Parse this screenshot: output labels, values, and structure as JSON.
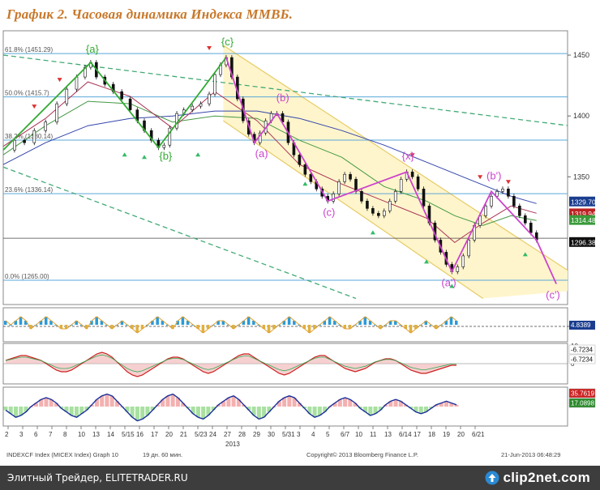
{
  "title": "График 2.   Часовая динамика Индекса ММВБ.",
  "colors": {
    "title": "#c8782a",
    "price": "#111111",
    "wave": "#cc44cc",
    "wave_abc": "#33aa33",
    "fib": "#5aa8d8",
    "channel_fill": "#fff5cc",
    "channel_line": "#e6cc66",
    "trend_dash": "#44aa77",
    "ma_long": "#3344aa",
    "ma_mid": "#449944",
    "ma_short": "#aa3355",
    "arrow_up": "#33bb66",
    "arrow_down": "#dd3333",
    "tag_blue": "#1a3d8f",
    "tag_red": "#bb2222",
    "tag_green": "#3a9a3a",
    "tag_black": "#111111"
  },
  "chart_data": {
    "type": "line",
    "ylim": [
      1245,
      1470
    ],
    "y_ticks": [
      "1450",
      "1400",
      "1350"
    ],
    "fib_levels": [
      {
        "label": "61.8% (1451.29)",
        "value": 1451.29
      },
      {
        "label": "50.0% (1415.7)",
        "value": 1415.7
      },
      {
        "label": "38.2% (1380.14)",
        "value": 1380.14
      },
      {
        "label": "23.6% (1336.14)",
        "value": 1336.14
      },
      {
        "label": "0.0% (1265.00)",
        "value": 1265.0
      }
    ],
    "extra_hlines": [
      1299.5
    ],
    "price_tags": [
      {
        "text": "1329.70",
        "value": 1329.7,
        "color": "tag_blue"
      },
      {
        "text": "1319.94",
        "value": 1319.94,
        "color": "tag_red"
      },
      {
        "text": "1314.48",
        "value": 1314.48,
        "color": "tag_green"
      },
      {
        "text": "1296.38",
        "value": 1296.38,
        "color": "tag_black"
      }
    ],
    "price": [
      [
        0,
        1372
      ],
      [
        8,
        1380
      ],
      [
        15,
        1378
      ],
      [
        22,
        1388
      ],
      [
        30,
        1395
      ],
      [
        38,
        1410
      ],
      [
        45,
        1422
      ],
      [
        52,
        1432
      ],
      [
        58,
        1440
      ],
      [
        62,
        1444
      ],
      [
        66,
        1432
      ],
      [
        72,
        1426
      ],
      [
        78,
        1420
      ],
      [
        84,
        1414
      ],
      [
        90,
        1405
      ],
      [
        95,
        1396
      ],
      [
        100,
        1388
      ],
      [
        105,
        1380
      ],
      [
        110,
        1374
      ],
      [
        114,
        1376
      ],
      [
        118,
        1390
      ],
      [
        123,
        1402
      ],
      [
        128,
        1405
      ],
      [
        134,
        1408
      ],
      [
        140,
        1410
      ],
      [
        146,
        1418
      ],
      [
        150,
        1434
      ],
      [
        154,
        1442
      ],
      [
        158,
        1448
      ],
      [
        162,
        1432
      ],
      [
        166,
        1414
      ],
      [
        170,
        1396
      ],
      [
        174,
        1385
      ],
      [
        178,
        1378
      ],
      [
        182,
        1386
      ],
      [
        186,
        1396
      ],
      [
        190,
        1402
      ],
      [
        194,
        1402
      ],
      [
        198,
        1395
      ],
      [
        202,
        1378
      ],
      [
        206,
        1368
      ],
      [
        210,
        1360
      ],
      [
        214,
        1352
      ],
      [
        218,
        1346
      ],
      [
        222,
        1340
      ],
      [
        226,
        1334
      ],
      [
        230,
        1330
      ],
      [
        234,
        1336
      ],
      [
        238,
        1346
      ],
      [
        242,
        1352
      ],
      [
        246,
        1348
      ],
      [
        250,
        1338
      ],
      [
        254,
        1330
      ],
      [
        258,
        1324
      ],
      [
        262,
        1320
      ],
      [
        266,
        1318
      ],
      [
        270,
        1322
      ],
      [
        274,
        1330
      ],
      [
        278,
        1338
      ],
      [
        282,
        1348
      ],
      [
        286,
        1354
      ],
      [
        290,
        1350
      ],
      [
        294,
        1340
      ],
      [
        298,
        1326
      ],
      [
        302,
        1312
      ],
      [
        306,
        1298
      ],
      [
        310,
        1288
      ],
      [
        314,
        1278
      ],
      [
        318,
        1272
      ],
      [
        322,
        1276
      ],
      [
        326,
        1285
      ],
      [
        330,
        1298
      ],
      [
        334,
        1310
      ],
      [
        338,
        1318
      ],
      [
        342,
        1326
      ],
      [
        346,
        1334
      ],
      [
        350,
        1338
      ],
      [
        354,
        1340
      ],
      [
        358,
        1334
      ],
      [
        362,
        1326
      ],
      [
        366,
        1318
      ],
      [
        370,
        1312
      ],
      [
        374,
        1304
      ],
      [
        378,
        1298
      ]
    ],
    "ma_long": [
      [
        0,
        1360
      ],
      [
        30,
        1378
      ],
      [
        60,
        1392
      ],
      [
        90,
        1398
      ],
      [
        120,
        1400
      ],
      [
        150,
        1404
      ],
      [
        180,
        1404
      ],
      [
        210,
        1398
      ],
      [
        240,
        1388
      ],
      [
        270,
        1376
      ],
      [
        300,
        1362
      ],
      [
        330,
        1348
      ],
      [
        360,
        1334
      ],
      [
        378,
        1328
      ]
    ],
    "ma_mid": [
      [
        0,
        1368
      ],
      [
        30,
        1392
      ],
      [
        60,
        1412
      ],
      [
        90,
        1410
      ],
      [
        120,
        1395
      ],
      [
        150,
        1400
      ],
      [
        180,
        1398
      ],
      [
        210,
        1380
      ],
      [
        240,
        1366
      ],
      [
        270,
        1342
      ],
      [
        300,
        1330
      ],
      [
        320,
        1318
      ],
      [
        340,
        1310
      ],
      [
        360,
        1318
      ],
      [
        378,
        1314
      ]
    ],
    "ma_short": [
      [
        0,
        1375
      ],
      [
        30,
        1398
      ],
      [
        60,
        1428
      ],
      [
        90,
        1416
      ],
      [
        120,
        1390
      ],
      [
        150,
        1420
      ],
      [
        180,
        1396
      ],
      [
        210,
        1360
      ],
      [
        240,
        1344
      ],
      [
        270,
        1330
      ],
      [
        300,
        1316
      ],
      [
        320,
        1296
      ],
      [
        340,
        1312
      ],
      [
        360,
        1326
      ],
      [
        378,
        1320
      ]
    ],
    "wave_lines": [
      {
        "color": "wave_abc",
        "points": [
          [
            0,
            1372
          ],
          [
            62,
            1444
          ],
          [
            110,
            1374
          ],
          [
            158,
            1448
          ]
        ]
      },
      {
        "color": "wave",
        "points": [
          [
            158,
            1448
          ],
          [
            178,
            1378
          ],
          [
            194,
            1402
          ],
          [
            230,
            1330
          ],
          [
            286,
            1354
          ],
          [
            318,
            1272
          ],
          [
            346,
            1338
          ],
          [
            378,
            1298
          ],
          [
            392,
            1262
          ]
        ]
      }
    ],
    "channel": {
      "upper": [
        [
          156,
          1458
        ],
        [
          420,
          1258
        ]
      ],
      "lower": [
        [
          156,
          1396
        ],
        [
          340,
          1250
        ]
      ]
    },
    "trend_dashes": [
      [
        [
          0,
          1450
        ],
        [
          470,
          1382
        ]
      ],
      [
        [
          0,
          1358
        ],
        [
          250,
          1250
        ]
      ]
    ],
    "wave_labels": [
      {
        "text": "{a}",
        "x": 62,
        "y": 1452,
        "color": "wave_abc"
      },
      {
        "text": "{b}",
        "x": 114,
        "y": 1364,
        "color": "wave_abc"
      },
      {
        "text": "{c}",
        "x": 158,
        "y": 1458,
        "color": "wave_abc"
      },
      {
        "text": "(a)",
        "x": 182,
        "y": 1366,
        "color": "wave"
      },
      {
        "text": "(b)",
        "x": 197,
        "y": 1412,
        "color": "wave"
      },
      {
        "text": "(c)",
        "x": 230,
        "y": 1318,
        "color": "wave"
      },
      {
        "text": "{x}",
        "x": 286,
        "y": 1364,
        "color": "wave"
      },
      {
        "text": "(b')",
        "x": 346,
        "y": 1348,
        "color": "wave"
      },
      {
        "text": "(a')",
        "x": 314,
        "y": 1260,
        "color": "wave"
      },
      {
        "text": "(c')",
        "x": 388,
        "y": 1250,
        "color": "wave"
      }
    ],
    "arrows_up": [
      [
        86,
        1378
      ],
      [
        100,
        1376
      ],
      [
        138,
        1378
      ],
      [
        214,
        1354
      ],
      [
        262,
        1314
      ],
      [
        300,
        1290
      ],
      [
        370,
        1296
      ],
      [
        318,
        1270
      ]
    ],
    "arrows_down": [
      [
        22,
        1398
      ],
      [
        40,
        1420
      ],
      [
        146,
        1446
      ],
      [
        290,
        1358
      ],
      [
        338,
        1340
      ],
      [
        358,
        1336
      ]
    ],
    "x_tick_labels": [
      "2",
      "3",
      "6",
      "7",
      "8",
      "10",
      "13",
      "14",
      "5/15",
      "16",
      "17",
      "20",
      "21",
      "5/23",
      "24",
      "27",
      "28",
      "29",
      "30",
      "5/31",
      "3",
      "4",
      "5",
      "6/7",
      "10",
      "11",
      "13",
      "6/14",
      "17",
      "18",
      "19",
      "20",
      "6/21"
    ],
    "x_year": "2013",
    "osc1": {
      "tag": "4.8389",
      "values": [
        1,
        0,
        1,
        2,
        1,
        -1,
        0,
        1,
        2,
        1,
        0,
        -1,
        -1,
        0,
        1,
        0,
        -1,
        1,
        2,
        1,
        0,
        -1,
        0,
        1,
        0,
        -1,
        -2,
        -1,
        0,
        1,
        2,
        1,
        0,
        -1,
        1,
        2,
        1,
        0,
        -1,
        -2,
        -1,
        0,
        1,
        1,
        0,
        -1,
        0,
        1,
        2,
        1,
        0,
        -1,
        -2,
        -1,
        0,
        1,
        2,
        1,
        0,
        -1,
        -2,
        -1,
        0,
        1,
        2,
        1,
        0,
        -1,
        -1,
        0,
        1,
        2,
        1,
        0,
        -1,
        0,
        1,
        1,
        0,
        -1,
        -2,
        -1,
        0,
        1,
        0,
        -1,
        0,
        1,
        2,
        1
      ]
    },
    "osc2": {
      "ticks": [
        "10",
        "0"
      ],
      "tags": [
        "-6.7234",
        "-6.7234"
      ],
      "values": [
        2,
        3,
        4,
        5,
        5,
        4,
        3,
        2,
        0,
        -2,
        -4,
        -5,
        -5,
        -4,
        -2,
        0,
        2,
        4,
        6,
        7,
        6,
        4,
        1,
        -2,
        -5,
        -7,
        -8,
        -7,
        -5,
        -3,
        -1,
        1,
        3,
        4,
        4,
        3,
        1,
        -1,
        -3,
        -5,
        -6,
        -5,
        -3,
        -1,
        1,
        3,
        5,
        6,
        6,
        4,
        2,
        0,
        -2,
        -4,
        -6,
        -7,
        -6,
        -4,
        -2,
        0,
        2,
        4,
        5,
        5,
        3,
        1,
        -1,
        -3,
        -4,
        -5,
        -4,
        -3,
        -1,
        1,
        2,
        3,
        3,
        2,
        0,
        -2,
        -4,
        -5,
        -6,
        -6,
        -5,
        -4,
        -3,
        -2,
        -1,
        -1
      ]
    },
    "osc3": {
      "tags": [
        "35.7619",
        "17.0898"
      ],
      "values": [
        -2,
        -4,
        -6,
        -5,
        -3,
        0,
        2,
        4,
        5,
        4,
        2,
        -1,
        -3,
        -5,
        -6,
        -4,
        -2,
        1,
        4,
        6,
        7,
        6,
        3,
        0,
        -3,
        -6,
        -8,
        -7,
        -5,
        -2,
        1,
        4,
        6,
        7,
        5,
        2,
        -1,
        -4,
        -6,
        -7,
        -5,
        -2,
        1,
        3,
        5,
        6,
        4,
        1,
        -2,
        -5,
        -7,
        -6,
        -3,
        0,
        3,
        5,
        6,
        5,
        2,
        -1,
        -4,
        -6,
        -5,
        -3,
        0,
        2,
        4,
        5,
        4,
        2,
        -1,
        -3,
        -5,
        -4,
        -2,
        1,
        3,
        4,
        3,
        1,
        -1,
        -3,
        -4,
        -3,
        -1,
        1,
        2,
        3,
        2,
        1
      ]
    }
  },
  "footer_info": {
    "left": "INDEXCF Index (MICEX Index) Graph 10",
    "mid": "19 дн. 60 мин.",
    "copyright": "Copyright© 2013 Bloomberg Finance L.P.",
    "date": "21-Jun-2013 06:48:29"
  },
  "footer": {
    "text": "Элитный Трейдер, ELITETRADER.RU",
    "logo": "clip2net.com"
  }
}
